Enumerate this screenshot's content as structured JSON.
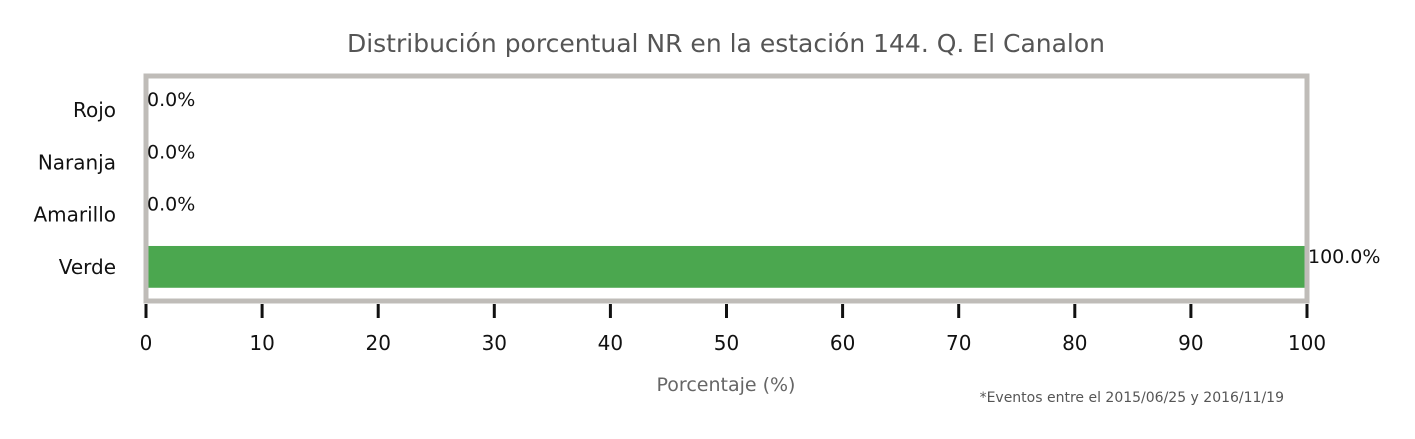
{
  "chart_data": {
    "type": "bar",
    "orientation": "horizontal",
    "title": "Distribución porcentual NR en la estación 144. Q. El Canalon",
    "xlabel": "Porcentaje (%)",
    "ylabel": "",
    "xlim": [
      0,
      100
    ],
    "xticks": [
      0,
      10,
      20,
      30,
      40,
      50,
      60,
      70,
      80,
      90,
      100
    ],
    "categories": [
      "Rojo",
      "Naranja",
      "Amarillo",
      "Verde"
    ],
    "values": [
      0.0,
      0.0,
      0.0,
      100.0
    ],
    "data_labels": [
      "0.0%",
      "0.0%",
      "0.0%",
      "100.0%"
    ],
    "colors": [
      "#e53935",
      "#fb8c00",
      "#fdd835",
      "#4ba74f"
    ],
    "frame_color": "#bfbcb8",
    "grid": false,
    "legend": "none",
    "footnote": "*Eventos entre el 2015/06/25 y 2016/11/19"
  }
}
